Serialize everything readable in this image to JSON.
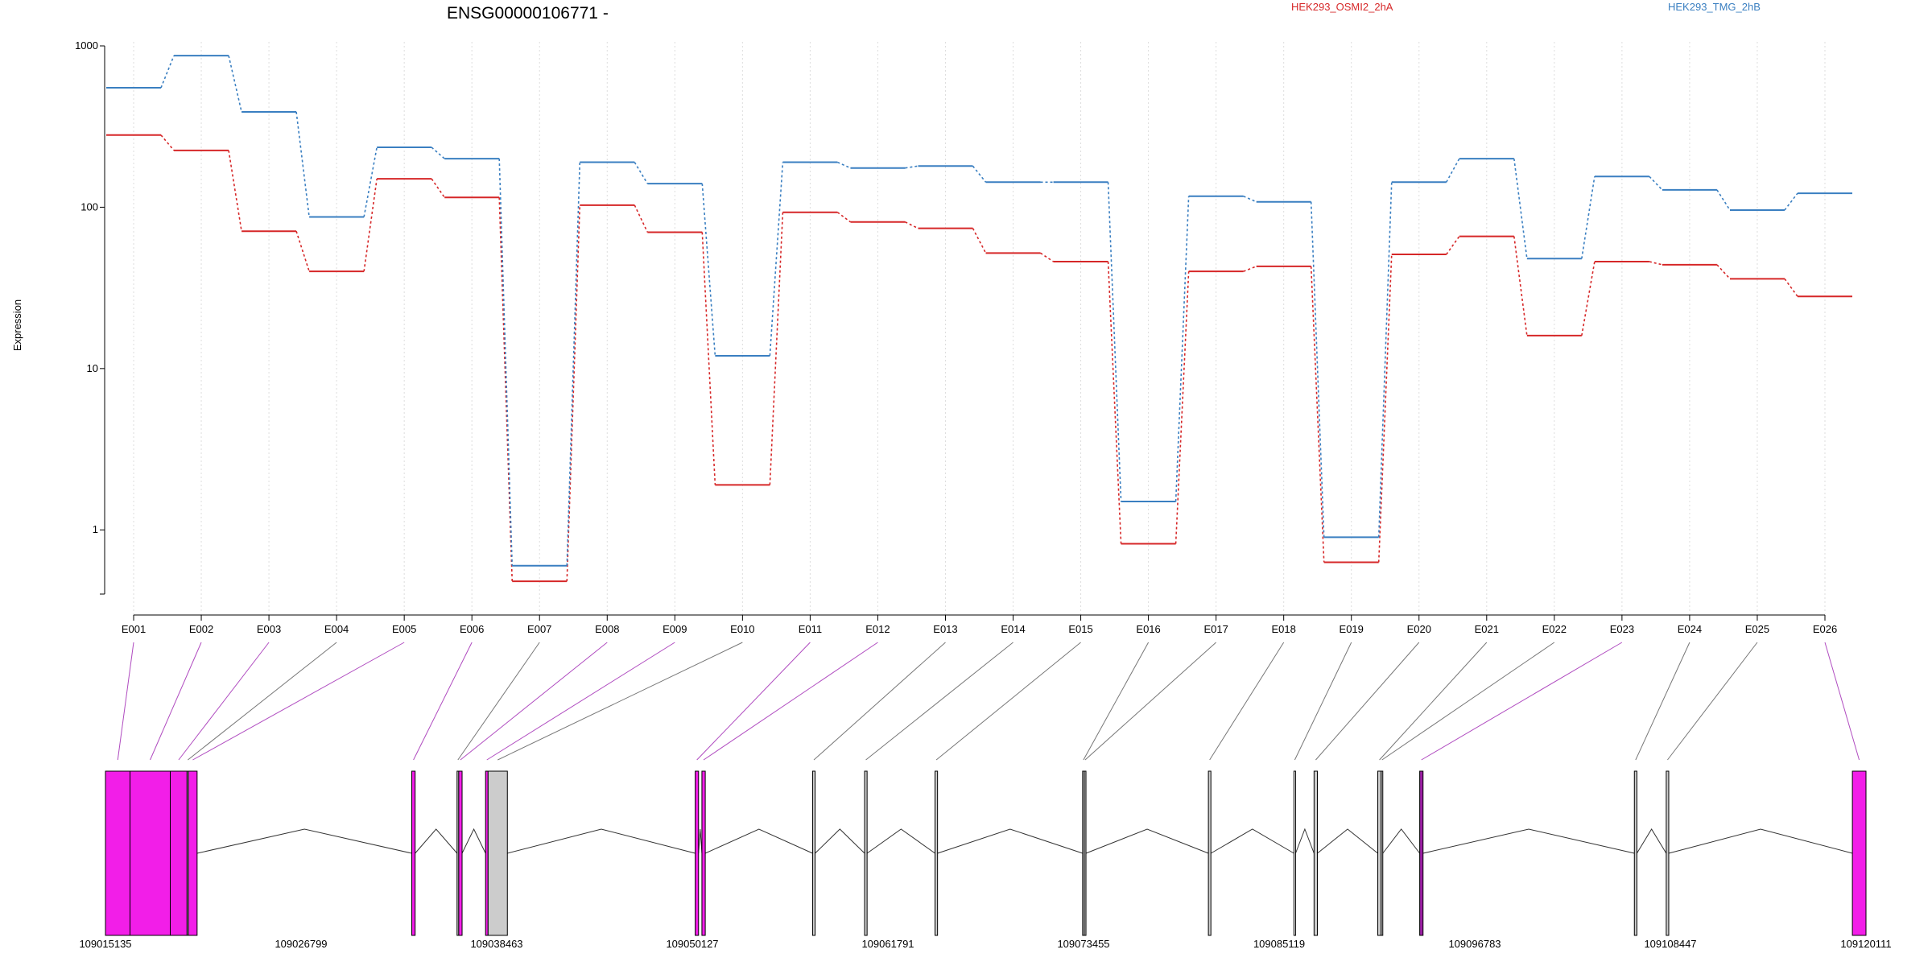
{
  "chart_data": {
    "type": "line",
    "title": "ENSG00000106771 -",
    "ylabel": "Expression",
    "yscale": "log",
    "ylim": [
      0.4,
      1000
    ],
    "yticks": [
      1,
      10,
      100,
      1000
    ],
    "yticklabels": [
      "1",
      "10",
      "100",
      "1000"
    ],
    "categories": [
      "E001",
      "E002",
      "E003",
      "E004",
      "E005",
      "E006",
      "E007",
      "E008",
      "E009",
      "E010",
      "E011",
      "E012",
      "E013",
      "E014",
      "E015",
      "E016",
      "E017",
      "E018",
      "E019",
      "E020",
      "E021",
      "E022",
      "E023",
      "E024",
      "E025",
      "E026"
    ],
    "series": [
      {
        "name": "HEK293_OSMI2_2hA",
        "color": "#d62728",
        "values": [
          280,
          225,
          71,
          40,
          150,
          115,
          0.48,
          103,
          70,
          1.9,
          93,
          81,
          74,
          52,
          46,
          0.82,
          40,
          43,
          0.63,
          51,
          66,
          16,
          46,
          44,
          36,
          28
        ]
      },
      {
        "name": "HEK293_TMG_2hB",
        "color": "#3a7fc1",
        "values": [
          550,
          870,
          390,
          87,
          235,
          200,
          0.6,
          190,
          140,
          12,
          190,
          175,
          180,
          143,
          143,
          1.5,
          117,
          108,
          0.9,
          143,
          200,
          48,
          155,
          128,
          96,
          122
        ]
      }
    ],
    "grid": "vertical-dotted",
    "gene_model": {
      "coord_ticks": [
        "109015135",
        "109026799",
        "109038463",
        "109050127",
        "109061791",
        "109073455",
        "109085119",
        "109096783",
        "109108447",
        "109120111"
      ],
      "range": [
        109015135,
        109120111
      ],
      "exons": [
        {
          "id": "E001",
          "start": 109015135,
          "end": 109016600,
          "color": "#f21ee8"
        },
        {
          "id": "E002",
          "start": 109016600,
          "end": 109019000,
          "color": "#f21ee8"
        },
        {
          "id": "E003",
          "start": 109019000,
          "end": 109020000,
          "color": "#f21ee8"
        },
        {
          "id": "E004",
          "start": 109020000,
          "end": 109020080,
          "color": "#cccccc"
        },
        {
          "id": "E005",
          "start": 109020080,
          "end": 109020600,
          "color": "#f21ee8"
        },
        {
          "id": "E006",
          "start": 109033400,
          "end": 109033600,
          "color": "#f21ee8"
        },
        {
          "id": "E007",
          "start": 109036100,
          "end": 109036200,
          "color": "#cccccc"
        },
        {
          "id": "E008",
          "start": 109036200,
          "end": 109036400,
          "color": "#f21ee8"
        },
        {
          "id": "E009",
          "start": 109037800,
          "end": 109037950,
          "color": "#f21ee8"
        },
        {
          "id": "E010",
          "start": 109037950,
          "end": 109039100,
          "color": "#cccccc"
        },
        {
          "id": "E011",
          "start": 109050300,
          "end": 109050500,
          "color": "#f21ee8"
        },
        {
          "id": "E012",
          "start": 109050700,
          "end": 109050900,
          "color": "#f21ee8"
        },
        {
          "id": "E013",
          "start": 109057300,
          "end": 109057450,
          "color": "#cccccc"
        },
        {
          "id": "E014",
          "start": 109060400,
          "end": 109060550,
          "color": "#cccccc"
        },
        {
          "id": "E015",
          "start": 109064600,
          "end": 109064750,
          "color": "#cccccc"
        },
        {
          "id": "E016",
          "start": 109073400,
          "end": 109073500,
          "color": "#cccccc"
        },
        {
          "id": "E017",
          "start": 109073500,
          "end": 109073600,
          "color": "#cccccc"
        },
        {
          "id": "E018",
          "start": 109080900,
          "end": 109081050,
          "color": "#cccccc"
        },
        {
          "id": "E019",
          "start": 109086000,
          "end": 109086100,
          "color": "#ffffff"
        },
        {
          "id": "E020",
          "start": 109087200,
          "end": 109087400,
          "color": "#cccccc"
        },
        {
          "id": "E021",
          "start": 109091000,
          "end": 109091200,
          "color": "#cccccc"
        },
        {
          "id": "E022",
          "start": 109091200,
          "end": 109091300,
          "color": "#cccccc"
        },
        {
          "id": "E023",
          "start": 109093500,
          "end": 109093700,
          "color": "#9b1fa3"
        },
        {
          "id": "E024",
          "start": 109106300,
          "end": 109106450,
          "color": "#cccccc"
        },
        {
          "id": "E025",
          "start": 109108200,
          "end": 109108350,
          "color": "#cccccc"
        },
        {
          "id": "E026",
          "start": 109119300,
          "end": 109120111,
          "color": "#f21ee8"
        }
      ]
    }
  }
}
